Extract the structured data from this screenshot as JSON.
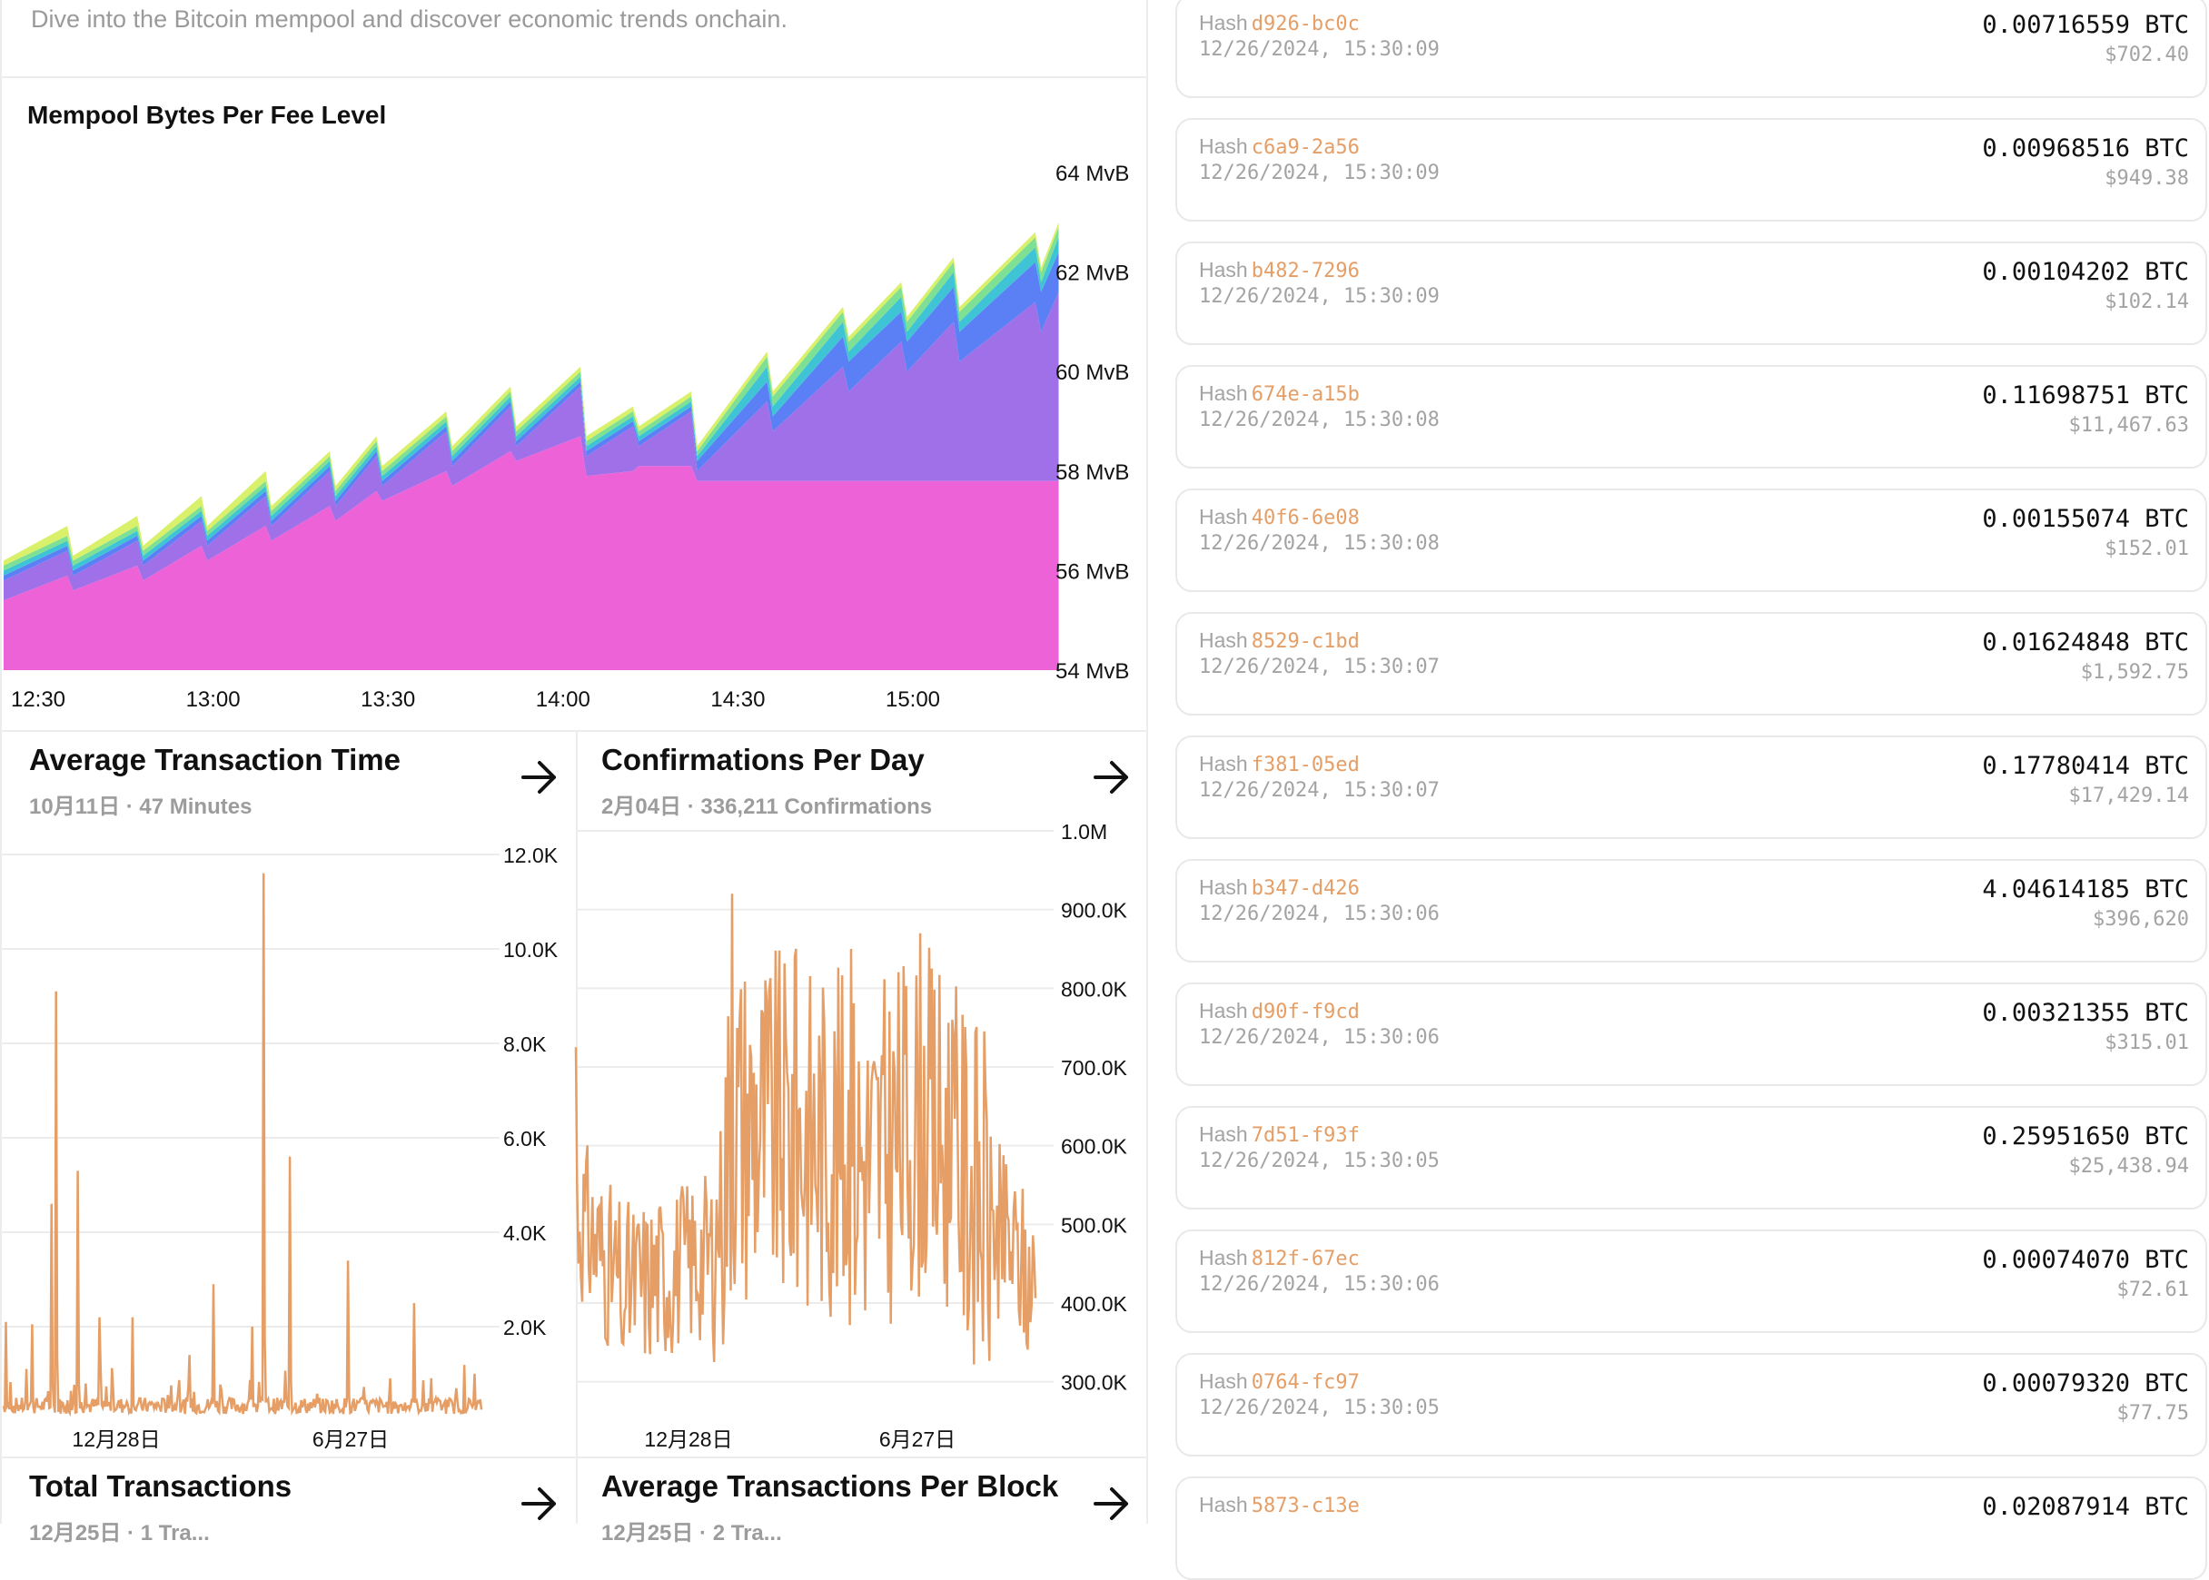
{
  "page": {
    "subtitle": "Dive into the Bitcoin mempool and discover economic trends onchain."
  },
  "colors": {
    "accent_orange": "#e59e66",
    "mempool_base": "#ee62d8",
    "mempool_purple": "#a070e8",
    "mempool_blue": "#5b7ff5",
    "mempool_teal": "#3fc4d6",
    "mempool_green": "#7ee094",
    "mempool_yellow": "#d8f06a"
  },
  "mempool_chart": {
    "title": "Mempool Bytes Per Fee Level"
  },
  "cards": [
    {
      "title": "Average Transaction Time",
      "subtitle": "10月11日 · 47 Minutes"
    },
    {
      "title": "Confirmations Per Day",
      "subtitle": "2月04日 · 336,211 Confirmations"
    },
    {
      "title": "Total Transactions",
      "subtitle": "12月25日 · 1 Tra..."
    },
    {
      "title": "Average Transactions Per Block",
      "subtitle": "12月25日 · 2 Tra..."
    }
  ],
  "chart_data": [
    {
      "type": "area",
      "title": "Mempool Bytes Per Fee Level",
      "x_ticks": [
        "12:30",
        "13:00",
        "13:30",
        "14:00",
        "14:30",
        "15:00"
      ],
      "y_ticks": [
        "64 MvB",
        "62 MvB",
        "60 MvB",
        "58 MvB",
        "56 MvB",
        "54 MvB"
      ],
      "ylim": [
        54,
        64
      ],
      "y_unit": "MvB",
      "x": [
        "12:21",
        "12:35",
        "12:36",
        "12:47",
        "12:48",
        "12:58",
        "12:59",
        "13:09",
        "13:10",
        "13:20",
        "13:21",
        "13:28",
        "13:29",
        "13:40",
        "13:41",
        "13:51",
        "13:52",
        "14:03",
        "14:04",
        "14:12",
        "14:13",
        "14:22",
        "14:23",
        "14:35",
        "14:36",
        "14:48",
        "14:49",
        "14:58",
        "14:59",
        "15:07",
        "15:08",
        "15:21",
        "15:22",
        "15:25"
      ],
      "series": [
        {
          "values": [
            55.4,
            55.9,
            55.6,
            56.1,
            55.8,
            56.5,
            56.2,
            56.9,
            56.6,
            57.3,
            57.0,
            57.6,
            57.4,
            58.0,
            57.7,
            58.4,
            58.2,
            58.7,
            57.9,
            58.0,
            58.1,
            58.1,
            57.8,
            57.8,
            57.8,
            57.8,
            57.8,
            57.8,
            57.8,
            57.8,
            57.8,
            57.8,
            57.8,
            57.8
          ]
        },
        {
          "values": [
            55.8,
            56.4,
            55.9,
            56.6,
            56.1,
            57.0,
            56.5,
            57.5,
            56.9,
            58.0,
            57.3,
            58.3,
            57.7,
            58.8,
            58.1,
            59.3,
            58.5,
            59.7,
            58.3,
            58.9,
            58.5,
            59.2,
            58.0,
            59.4,
            58.8,
            60.1,
            59.6,
            60.6,
            60.0,
            61.0,
            60.2,
            61.4,
            60.8,
            61.6
          ]
        },
        {
          "values": [
            55.9,
            56.5,
            56.0,
            56.7,
            56.2,
            57.1,
            56.6,
            57.6,
            57.0,
            58.1,
            57.4,
            58.4,
            57.8,
            58.9,
            58.2,
            59.4,
            58.6,
            59.8,
            58.4,
            59.0,
            58.6,
            59.3,
            58.2,
            59.8,
            59.1,
            60.7,
            60.2,
            61.2,
            60.6,
            61.7,
            60.8,
            62.2,
            61.6,
            62.4
          ]
        },
        {
          "values": [
            56.0,
            56.6,
            56.1,
            56.8,
            56.3,
            57.2,
            56.7,
            57.7,
            57.1,
            58.2,
            57.5,
            58.5,
            57.9,
            59.0,
            58.3,
            59.5,
            58.7,
            59.9,
            58.5,
            59.1,
            58.7,
            59.4,
            58.3,
            60.1,
            59.3,
            61.0,
            60.4,
            61.5,
            60.8,
            62.0,
            61.0,
            62.5,
            61.8,
            62.7
          ]
        },
        {
          "values": [
            56.1,
            56.7,
            56.2,
            56.9,
            56.4,
            57.3,
            56.8,
            57.8,
            57.2,
            58.3,
            57.6,
            58.6,
            58.0,
            59.1,
            58.4,
            59.6,
            58.8,
            60.0,
            58.6,
            59.2,
            58.8,
            59.5,
            58.4,
            60.3,
            59.5,
            61.2,
            60.6,
            61.7,
            61.0,
            62.2,
            61.2,
            62.7,
            62.0,
            62.9
          ]
        },
        {
          "values": [
            56.2,
            56.9,
            56.3,
            57.1,
            56.5,
            57.5,
            56.9,
            58.0,
            57.3,
            58.4,
            57.7,
            58.7,
            58.1,
            59.2,
            58.5,
            59.7,
            58.9,
            60.1,
            58.7,
            59.3,
            58.9,
            59.6,
            58.5,
            60.4,
            59.6,
            61.3,
            60.7,
            61.8,
            61.1,
            62.3,
            61.3,
            62.8,
            62.1,
            63.0
          ]
        }
      ]
    },
    {
      "type": "line",
      "title": "Average Transaction Time",
      "x_ticks": [
        "12月28日",
        "6月27日"
      ],
      "y_ticks": [
        "12.0K",
        "10.0K",
        "8.0K",
        "6.0K",
        "4.0K",
        "2.0K"
      ],
      "ylim": [
        0,
        12500
      ],
      "spikes": [
        {
          "x": 0.005,
          "y": 2100
        },
        {
          "x": 0.06,
          "y": 2050
        },
        {
          "x": 0.1,
          "y": 4600
        },
        {
          "x": 0.11,
          "y": 9100
        },
        {
          "x": 0.155,
          "y": 5300
        },
        {
          "x": 0.2,
          "y": 2200
        },
        {
          "x": 0.27,
          "y": 2200
        },
        {
          "x": 0.39,
          "y": 1400
        },
        {
          "x": 0.44,
          "y": 2900
        },
        {
          "x": 0.52,
          "y": 2000
        },
        {
          "x": 0.545,
          "y": 11600
        },
        {
          "x": 0.6,
          "y": 5600
        },
        {
          "x": 0.72,
          "y": 3400
        },
        {
          "x": 0.86,
          "y": 2500
        },
        {
          "x": 0.93,
          "y": 300
        }
      ]
    },
    {
      "type": "line",
      "title": "Confirmations Per Day",
      "x_ticks": [
        "12月28日",
        "6月27日"
      ],
      "y_ticks": [
        "1.0M",
        "900.0K",
        "800.0K",
        "700.0K",
        "600.0K",
        "500.0K",
        "400.0K",
        "300.0K"
      ],
      "ylim": [
        250000,
        1000000
      ],
      "peaks": [
        {
          "x": 0.0,
          "y": 725000
        },
        {
          "x": 0.1,
          "y": 350000
        },
        {
          "x": 0.3,
          "y": 325000
        },
        {
          "x": 0.34,
          "y": 920000
        },
        {
          "x": 0.48,
          "y": 850000
        },
        {
          "x": 0.6,
          "y": 850000
        },
        {
          "x": 0.75,
          "y": 870000
        },
        {
          "x": 0.82,
          "y": 760000
        },
        {
          "x": 0.92,
          "y": 380000
        },
        {
          "x": 0.98,
          "y": 350000
        }
      ]
    }
  ],
  "transactions": [
    {
      "label": "Hash",
      "hash": "d926-bc0c",
      "time": "12/26/2024, 15:30:09",
      "btc": "0.00716559 BTC",
      "usd": "$702.40"
    },
    {
      "label": "Hash",
      "hash": "c6a9-2a56",
      "time": "12/26/2024, 15:30:09",
      "btc": "0.00968516 BTC",
      "usd": "$949.38"
    },
    {
      "label": "Hash",
      "hash": "b482-7296",
      "time": "12/26/2024, 15:30:09",
      "btc": "0.00104202 BTC",
      "usd": "$102.14"
    },
    {
      "label": "Hash",
      "hash": "674e-a15b",
      "time": "12/26/2024, 15:30:08",
      "btc": "0.11698751 BTC",
      "usd": "$11,467.63"
    },
    {
      "label": "Hash",
      "hash": "40f6-6e08",
      "time": "12/26/2024, 15:30:08",
      "btc": "0.00155074 BTC",
      "usd": "$152.01"
    },
    {
      "label": "Hash",
      "hash": "8529-c1bd",
      "time": "12/26/2024, 15:30:07",
      "btc": "0.01624848 BTC",
      "usd": "$1,592.75"
    },
    {
      "label": "Hash",
      "hash": "f381-05ed",
      "time": "12/26/2024, 15:30:07",
      "btc": "0.17780414 BTC",
      "usd": "$17,429.14"
    },
    {
      "label": "Hash",
      "hash": "b347-d426",
      "time": "12/26/2024, 15:30:06",
      "btc": "4.04614185 BTC",
      "usd": "$396,620"
    },
    {
      "label": "Hash",
      "hash": "d90f-f9cd",
      "time": "12/26/2024, 15:30:06",
      "btc": "0.00321355 BTC",
      "usd": "$315.01"
    },
    {
      "label": "Hash",
      "hash": "7d51-f93f",
      "time": "12/26/2024, 15:30:05",
      "btc": "0.25951650 BTC",
      "usd": "$25,438.94"
    },
    {
      "label": "Hash",
      "hash": "812f-67ec",
      "time": "12/26/2024, 15:30:06",
      "btc": "0.00074070 BTC",
      "usd": "$72.61"
    },
    {
      "label": "Hash",
      "hash": "0764-fc97",
      "time": "12/26/2024, 15:30:05",
      "btc": "0.00079320 BTC",
      "usd": "$77.75"
    },
    {
      "label": "Hash",
      "hash": "5873-c13e",
      "time": "",
      "btc": "0.02087914 BTC",
      "usd": ""
    }
  ]
}
